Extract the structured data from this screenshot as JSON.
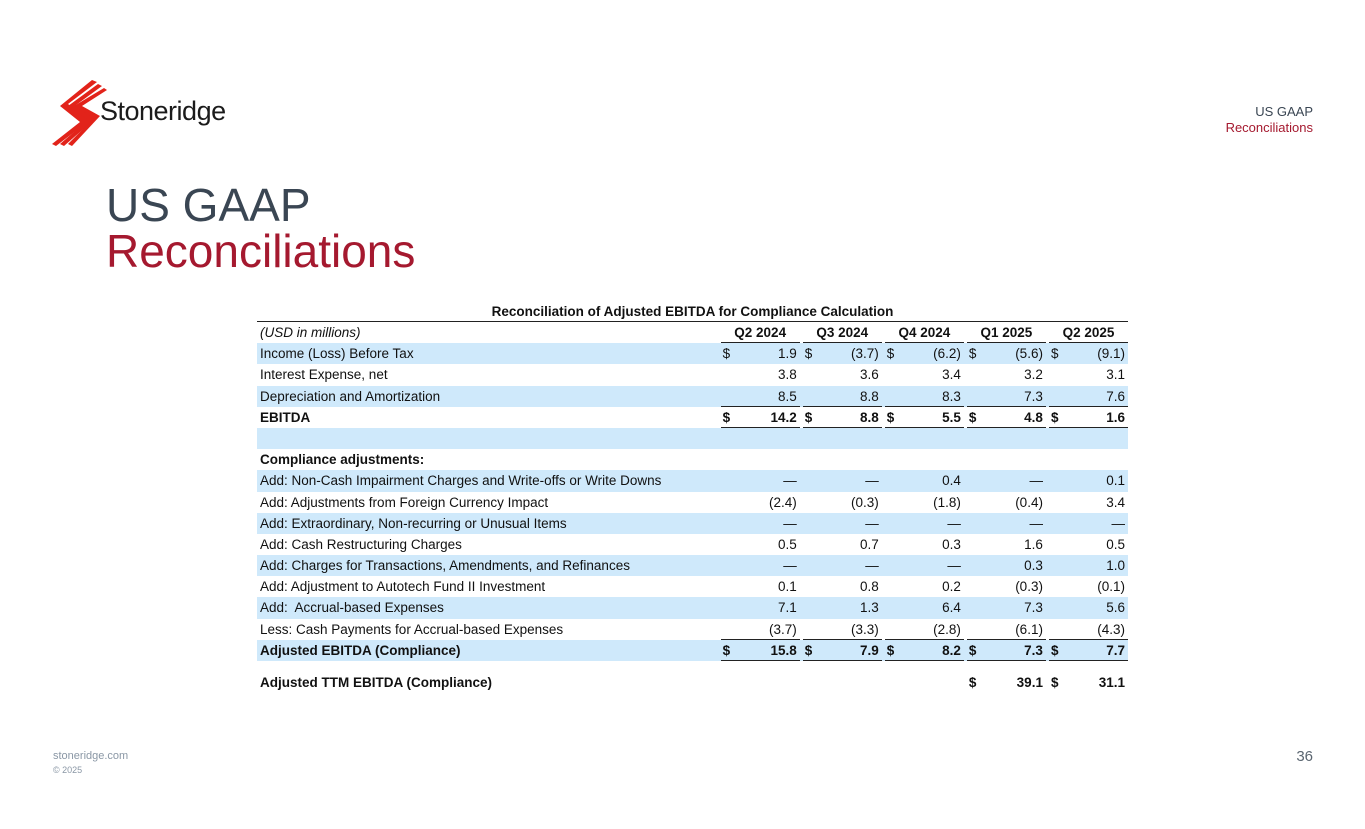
{
  "brand": {
    "name": "Stoneridge",
    "color": "#e2231a"
  },
  "header": {
    "line1": "US GAAP",
    "line2": "Reconciliations"
  },
  "title": {
    "line1": "US GAAP",
    "line2": "Reconciliations"
  },
  "table": {
    "title": "Reconciliation of Adjusted EBITDA for Compliance Calculation",
    "unit_label": "(USD in millions)",
    "columns": [
      "Q2 2024",
      "Q3 2024",
      "Q4 2024",
      "Q1 2025",
      "Q2 2025"
    ],
    "rows": [
      {
        "label": "Income (Loss) Before Tax",
        "dollar": true,
        "values": [
          "1.9",
          "(3.7)",
          "(6.2)",
          "(5.6)",
          "(9.1)"
        ]
      },
      {
        "label": "Interest Expense, net",
        "values": [
          "3.8",
          "3.6",
          "3.4",
          "3.2",
          "3.1"
        ]
      },
      {
        "label": "Depreciation and Amortization",
        "values": [
          "8.5",
          "8.8",
          "8.3",
          "7.3",
          "7.6"
        ],
        "underline": true
      },
      {
        "label": "EBITDA",
        "bold": true,
        "dollar": true,
        "values": [
          "14.2",
          "8.8",
          "5.5",
          "4.8",
          "1.6"
        ],
        "underline": true
      },
      {
        "label": "",
        "values": [
          "",
          "",
          "",
          "",
          ""
        ]
      },
      {
        "label": "Compliance adjustments:",
        "bold": true,
        "values": [
          "",
          "",
          "",
          "",
          ""
        ]
      },
      {
        "label": "Add: Non-Cash Impairment Charges and Write-offs or Write Downs",
        "values": [
          "—",
          "—",
          "0.4",
          "—",
          "0.1"
        ]
      },
      {
        "label": "Add: Adjustments from Foreign Currency Impact",
        "values": [
          "(2.4)",
          "(0.3)",
          "(1.8)",
          "(0.4)",
          "3.4"
        ]
      },
      {
        "label": "Add: Extraordinary, Non-recurring or Unusual Items",
        "values": [
          "—",
          "—",
          "—",
          "—",
          "—"
        ]
      },
      {
        "label": "Add: Cash Restructuring Charges",
        "values": [
          "0.5",
          "0.7",
          "0.3",
          "1.6",
          "0.5"
        ]
      },
      {
        "label": "Add: Charges for Transactions, Amendments, and Refinances",
        "values": [
          "—",
          "—",
          "—",
          "0.3",
          "1.0"
        ]
      },
      {
        "label": "Add: Adjustment to Autotech Fund II Investment",
        "values": [
          "0.1",
          "0.8",
          "0.2",
          "(0.3)",
          "(0.1)"
        ]
      },
      {
        "label": "Add:  Accrual-based Expenses",
        "values": [
          "7.1",
          "1.3",
          "6.4",
          "7.3",
          "5.6"
        ]
      },
      {
        "label": "Less: Cash Payments for Accrual-based Expenses",
        "values": [
          "(3.7)",
          "(3.3)",
          "(2.8)",
          "(6.1)",
          "(4.3)"
        ],
        "underline": true
      },
      {
        "label": "Adjusted EBITDA (Compliance)",
        "bold": true,
        "dollar": true,
        "values": [
          "15.8",
          "7.9",
          "8.2",
          "7.3",
          "7.7"
        ],
        "underline": true
      },
      {
        "gap": true
      },
      {
        "label": "Adjusted TTM EBITDA (Compliance)",
        "bold": true,
        "dollar": true,
        "values": [
          "",
          "",
          "",
          "39.1",
          "31.1"
        ]
      }
    ],
    "currency_symbol": "$"
  },
  "footer": {
    "site": "stoneridge.com",
    "copyright": "© 2025",
    "page": "36"
  }
}
